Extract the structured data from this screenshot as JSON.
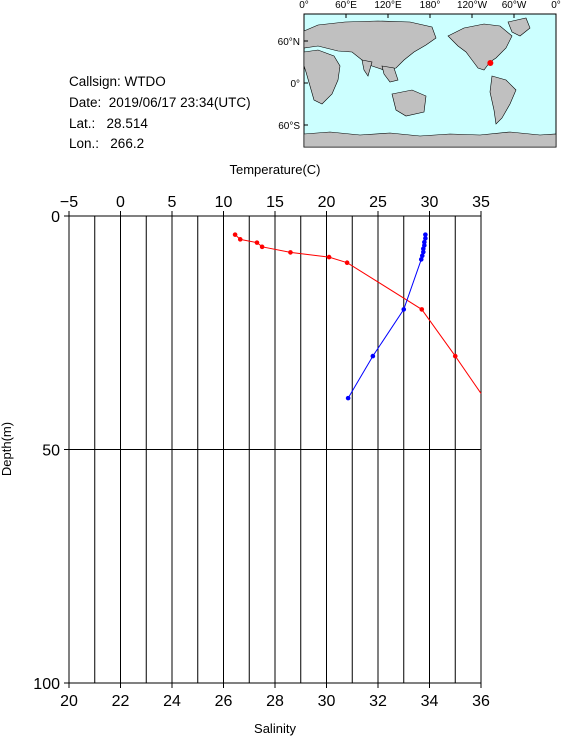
{
  "station": {
    "callsign_label": "Callsign:",
    "callsign": "WTDO",
    "date_label": "Date:",
    "date": "2019/06/17 23:34(UTC)",
    "lat_label": "Lat.:",
    "lat": "28.514",
    "lon_label": "Lon.:",
    "lon": "266.2"
  },
  "map": {
    "top_ticks": [
      "0°",
      "60°E",
      "120°E",
      "180°",
      "120°W",
      "60°W",
      "0°"
    ],
    "lat_ticks": [
      "60°N",
      "0°",
      "60°S"
    ],
    "ocean_color": "#ccffff",
    "land_color": "#c0c0c0",
    "marker_color": "#ff0000",
    "marker_position": {
      "lon": 266.2,
      "lat": 28.514
    }
  },
  "chart_data": {
    "type": "line",
    "title": "",
    "top_axis_label": "Temperature(C)",
    "bottom_axis_label": "Salinity",
    "y_axis_label": "Depth(m)",
    "temperature_ticks": [
      "-5",
      "0",
      "5",
      "10",
      "15",
      "20",
      "25",
      "30",
      "35"
    ],
    "salinity_ticks": [
      "20",
      "22",
      "24",
      "26",
      "28",
      "30",
      "32",
      "34",
      "36"
    ],
    "depth_ticks": [
      "0",
      "50",
      "100"
    ],
    "temperature_range": [
      -5,
      35
    ],
    "salinity_range": [
      20,
      36
    ],
    "depth_range": [
      0,
      100
    ],
    "grid": true,
    "series": [
      {
        "quantity": "Salinity",
        "color": "#ff0000",
        "points": [
          {
            "x": 26.45,
            "depth": 4.0
          },
          {
            "x": 26.65,
            "depth": 5.0
          },
          {
            "x": 27.3,
            "depth": 5.7
          },
          {
            "x": 27.5,
            "depth": 6.6
          },
          {
            "x": 28.6,
            "depth": 7.8
          },
          {
            "x": 30.1,
            "depth": 8.8
          },
          {
            "x": 30.8,
            "depth": 10.0
          },
          {
            "x": 33.7,
            "depth": 20.0
          },
          {
            "x": 35.0,
            "depth": 30.0
          },
          {
            "x": 36.0,
            "depth": 38.0
          }
        ]
      },
      {
        "quantity": "Temperature",
        "color": "#0000ff",
        "points": [
          {
            "x": 29.6,
            "depth": 4.0
          },
          {
            "x": 29.6,
            "depth": 4.8
          },
          {
            "x": 29.5,
            "depth": 5.6
          },
          {
            "x": 29.5,
            "depth": 6.3
          },
          {
            "x": 29.4,
            "depth": 7.0
          },
          {
            "x": 29.4,
            "depth": 7.7
          },
          {
            "x": 29.3,
            "depth": 8.5
          },
          {
            "x": 29.2,
            "depth": 9.3
          },
          {
            "x": 27.5,
            "depth": 20.0
          },
          {
            "x": 24.5,
            "depth": 30.0
          },
          {
            "x": 22.1,
            "depth": 39.0
          }
        ]
      }
    ]
  }
}
